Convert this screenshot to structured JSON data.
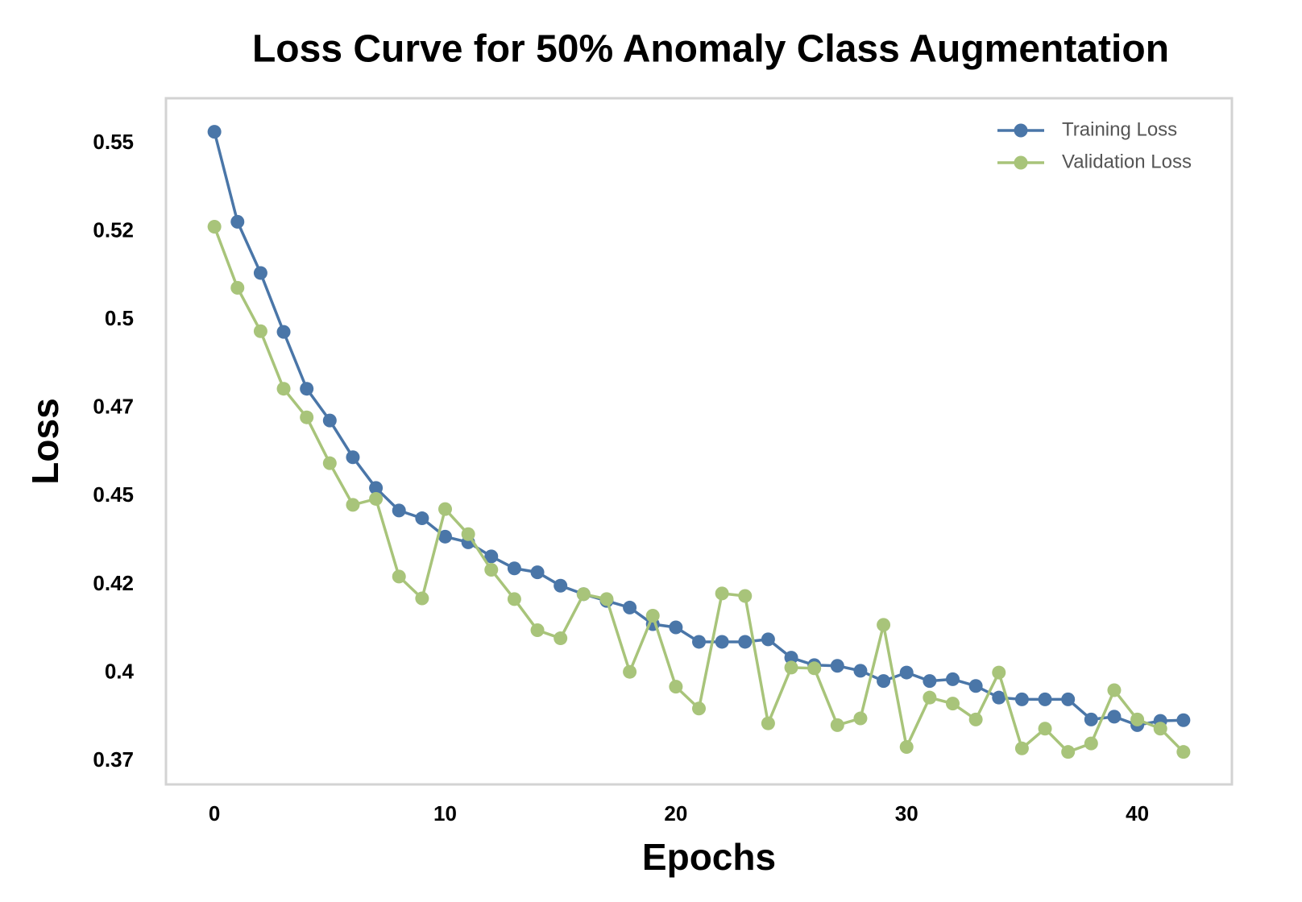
{
  "chart_data": {
    "type": "line",
    "title": "Loss Curve for 50% Anomaly Class Augmentation",
    "x_label": "Epochs",
    "y_label": "Loss",
    "x": [
      0,
      1,
      2,
      3,
      4,
      5,
      6,
      7,
      8,
      9,
      10,
      11,
      12,
      13,
      14,
      15,
      16,
      17,
      18,
      19,
      20,
      21,
      22,
      23,
      24,
      25,
      26,
      27,
      28,
      29,
      30,
      31,
      32,
      33,
      34,
      35,
      36,
      37,
      38,
      39,
      40,
      41,
      42
    ],
    "series": [
      {
        "name": "Training Loss",
        "color": "#4a76a8",
        "values": [
          0.5533,
          0.5278,
          0.5133,
          0.4966,
          0.4805,
          0.4715,
          0.4611,
          0.4524,
          0.446,
          0.4438,
          0.4386,
          0.437,
          0.433,
          0.4296,
          0.4285,
          0.4247,
          0.4223,
          0.4204,
          0.4185,
          0.4138,
          0.4129,
          0.4088,
          0.4088,
          0.4088,
          0.4095,
          0.4043,
          0.4022,
          0.402,
          0.4006,
          0.3977,
          0.4001,
          0.3977,
          0.3982,
          0.3963,
          0.393,
          0.3925,
          0.3925,
          0.3925,
          0.3868,
          0.3876,
          0.3852,
          0.3864,
          0.3866
        ]
      },
      {
        "name": "Validation Loss",
        "color": "#a8c47a",
        "values": [
          0.5264,
          0.5091,
          0.4968,
          0.4805,
          0.4724,
          0.4594,
          0.4476,
          0.4493,
          0.4273,
          0.4211,
          0.4464,
          0.4393,
          0.4292,
          0.4209,
          0.4121,
          0.4098,
          0.4223,
          0.4209,
          0.4003,
          0.4162,
          0.3961,
          0.3899,
          0.4225,
          0.4218,
          0.3857,
          0.4015,
          0.4013,
          0.3852,
          0.3871,
          0.4136,
          0.379,
          0.393,
          0.3913,
          0.3868,
          0.4001,
          0.3786,
          0.3842,
          0.3776,
          0.38,
          0.3951,
          0.3868,
          0.3842,
          0.3776
        ]
      }
    ],
    "xlim": [
      -2.1,
      44.1
    ],
    "ylim": [
      0.3684,
      0.5628
    ],
    "xticks": [
      0,
      10,
      20,
      30,
      40
    ],
    "yticks": [
      0.55,
      {
        "value": 0.525,
        "label": "0.52"
      },
      0.5,
      {
        "value": 0.475,
        "label": "0.47"
      },
      0.45,
      {
        "value": 0.425,
        "label": "0.42"
      },
      0.4,
      {
        "value": 0.375,
        "label": "0.37"
      }
    ],
    "grid": false,
    "legend": "upper right"
  }
}
